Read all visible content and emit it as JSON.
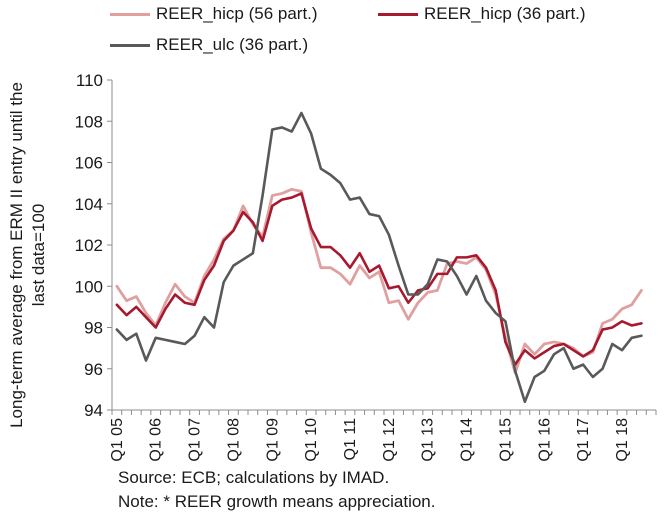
{
  "colors": {
    "reer_hicp_56": "#e0a0a0",
    "reer_hicp_36": "#a6192e",
    "reer_ulc_36": "#595959",
    "axis": "#8c8c8c"
  },
  "notes": {
    "source": "Source: ECB; calculations by IMAD.",
    "growth": "Note: * REER  growth means appreciation."
  },
  "chart_data": {
    "type": "line",
    "ylabel_line1": "Long-term average from ERM II entry until the",
    "ylabel_line2": "last data=100",
    "xlabel": "",
    "ylim": [
      94,
      110
    ],
    "yticks": [
      94,
      96,
      98,
      100,
      102,
      104,
      106,
      108,
      110
    ],
    "x_tick_labels": [
      "Q1 05",
      "Q1 06",
      "Q1 07",
      "Q1 08",
      "Q1 09",
      "Q1 10",
      "Q1 11",
      "Q1 12",
      "Q1 13",
      "Q1 14",
      "Q1 15",
      "Q1 16",
      "Q1 17",
      "Q1 18"
    ],
    "x": [
      "2005Q1",
      "2005Q2",
      "2005Q3",
      "2005Q4",
      "2006Q1",
      "2006Q2",
      "2006Q3",
      "2006Q4",
      "2007Q1",
      "2007Q2",
      "2007Q3",
      "2007Q4",
      "2008Q1",
      "2008Q2",
      "2008Q3",
      "2008Q4",
      "2009Q1",
      "2009Q2",
      "2009Q3",
      "2009Q4",
      "2010Q1",
      "2010Q2",
      "2010Q3",
      "2010Q4",
      "2011Q1",
      "2011Q2",
      "2011Q3",
      "2011Q4",
      "2012Q1",
      "2012Q2",
      "2012Q3",
      "2012Q4",
      "2013Q1",
      "2013Q2",
      "2013Q3",
      "2013Q4",
      "2014Q1",
      "2014Q2",
      "2014Q3",
      "2014Q4",
      "2015Q1",
      "2015Q2",
      "2015Q3",
      "2015Q4",
      "2016Q1",
      "2016Q2",
      "2016Q3",
      "2016Q4",
      "2017Q1",
      "2017Q2",
      "2017Q3",
      "2017Q4",
      "2018Q1",
      "2018Q2",
      "2018Q3",
      "2018Q4"
    ],
    "grid": false,
    "legend_position": "top",
    "series": [
      {
        "name": "REER_hicp (56 part.)",
        "color_key": "reer_hicp_56",
        "values": [
          100.0,
          99.3,
          99.5,
          98.7,
          98.1,
          99.2,
          100.1,
          99.5,
          99.2,
          100.5,
          101.3,
          102.3,
          102.7,
          103.9,
          103.0,
          102.4,
          104.4,
          104.5,
          104.7,
          104.6,
          102.6,
          100.9,
          100.9,
          100.6,
          100.1,
          101.0,
          100.4,
          100.7,
          99.2,
          99.3,
          98.4,
          99.2,
          99.7,
          99.8,
          101.1,
          101.2,
          101.1,
          101.4,
          100.8,
          99.6,
          97.5,
          95.8,
          97.2,
          96.7,
          97.2,
          97.3,
          97.2,
          97.0,
          96.6,
          96.8,
          98.2,
          98.4,
          98.9,
          99.1,
          99.8,
          null
        ]
      },
      {
        "name": "REER_hicp (36 part.)",
        "color_key": "reer_hicp_36",
        "values": [
          99.1,
          98.6,
          99.0,
          98.5,
          98.0,
          98.9,
          99.6,
          99.2,
          99.1,
          100.3,
          101.0,
          102.2,
          102.7,
          103.6,
          103.1,
          102.2,
          103.9,
          104.2,
          104.3,
          104.5,
          102.8,
          101.9,
          101.9,
          101.5,
          100.9,
          101.6,
          100.7,
          101.0,
          99.9,
          100.0,
          99.2,
          99.8,
          99.9,
          100.6,
          100.6,
          101.4,
          101.4,
          101.5,
          100.9,
          99.8,
          97.3,
          96.2,
          96.9,
          96.5,
          96.8,
          97.1,
          97.2,
          96.9,
          96.6,
          96.9,
          97.9,
          98.0,
          98.3,
          98.1,
          98.2,
          null
        ]
      },
      {
        "name": "REER_ulc (36 part.)",
        "color_key": "reer_ulc_36",
        "values": [
          97.9,
          97.4,
          97.7,
          96.4,
          97.5,
          97.4,
          97.3,
          97.2,
          97.6,
          98.5,
          98.0,
          100.2,
          101.0,
          101.3,
          101.6,
          104.4,
          107.6,
          107.7,
          107.5,
          108.4,
          107.4,
          105.7,
          105.4,
          105.0,
          104.2,
          104.3,
          103.5,
          103.4,
          102.5,
          101.0,
          99.6,
          99.6,
          100.1,
          101.3,
          101.2,
          100.5,
          99.6,
          100.5,
          99.3,
          98.7,
          98.3,
          95.9,
          94.4,
          95.6,
          95.9,
          96.7,
          97.0,
          96.0,
          96.2,
          95.6,
          96.0,
          97.2,
          96.9,
          97.5,
          97.6,
          null
        ]
      }
    ]
  }
}
